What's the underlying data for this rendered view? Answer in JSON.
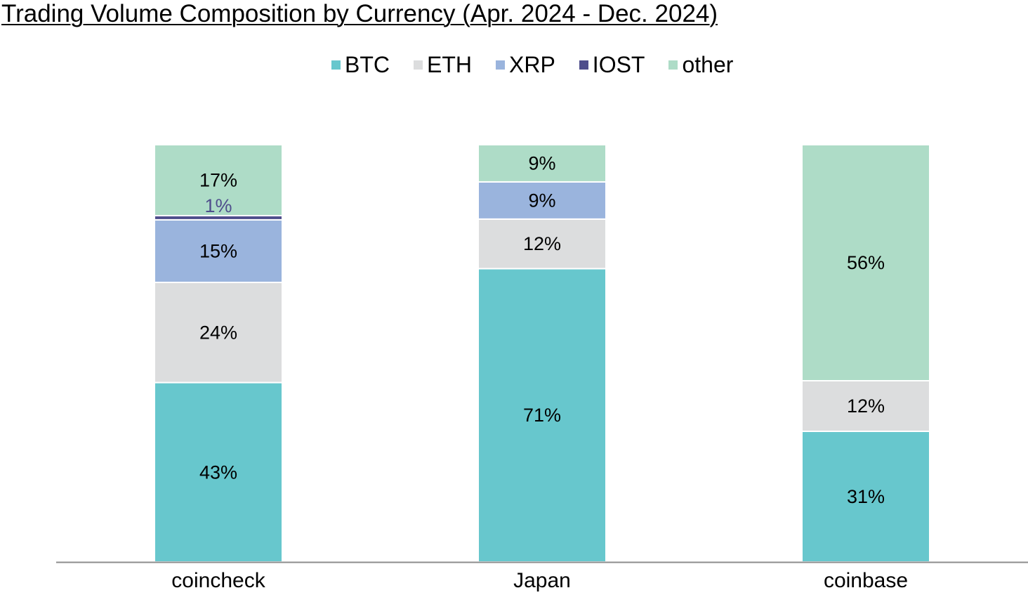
{
  "chart_data": {
    "type": "bar",
    "stacked": true,
    "percent_stacked": true,
    "title": "Trading Volume Composition by Currency (Apr. 2024 - Dec. 2024)",
    "xlabel": "",
    "ylabel": "",
    "ylim": [
      0,
      100
    ],
    "grid": false,
    "legend_position": "top-center",
    "categories": [
      "coincheck",
      "Japan",
      "coinbase"
    ],
    "series": [
      {
        "name": "BTC",
        "color": "#67c7cd",
        "label_color": "#000000",
        "values": [
          43,
          71,
          31
        ],
        "labels": [
          "43%",
          "71%",
          "31%"
        ]
      },
      {
        "name": "ETH",
        "color": "#dcddde",
        "label_color": "#000000",
        "values": [
          24,
          12,
          12
        ],
        "labels": [
          "24%",
          "12%",
          "12%"
        ]
      },
      {
        "name": "XRP",
        "color": "#9ab4dd",
        "label_color": "#000000",
        "values": [
          15,
          9,
          0
        ],
        "labels": [
          "15%",
          "9%",
          ""
        ]
      },
      {
        "name": "IOST",
        "color": "#4f4e8c",
        "label_color": "#4f4e8c",
        "values": [
          1,
          0,
          0
        ],
        "labels": [
          "1%",
          "",
          ""
        ]
      },
      {
        "name": "other",
        "color": "#aedcc7",
        "label_color": "#000000",
        "values": [
          17,
          9,
          56
        ],
        "labels": [
          "17%",
          "9%",
          "56%"
        ]
      }
    ]
  }
}
